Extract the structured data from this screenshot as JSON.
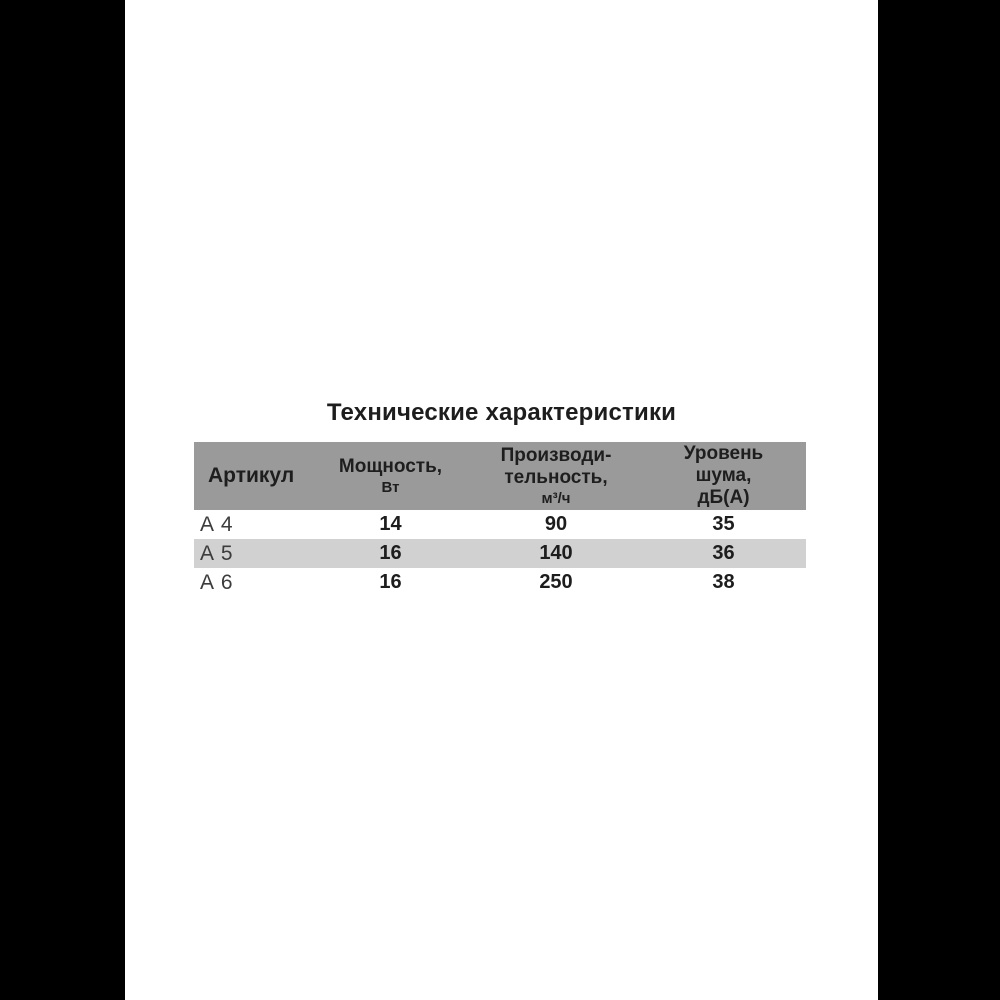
{
  "page": {
    "background_color": "#ffffff",
    "pillar_bar_color": "#000000"
  },
  "title": "Технические характеристики",
  "table": {
    "colors": {
      "header_bg": "#9a9a9a",
      "alt_row_bg": "#d1d1d1",
      "header_text": "#1e1e1e",
      "article_text": "#3c3c3c",
      "value_text": "#1d1d1d"
    },
    "header": {
      "article": "Артикул",
      "power_line1": "Мощность,",
      "power_line2": "Вт",
      "capacity_line1": "Производи-",
      "capacity_line2": "тельность,",
      "capacity_line3": "м³/ч",
      "noise_line1": "Уровень",
      "noise_line2": "шума,",
      "noise_line3": "дБ(А)"
    },
    "rows": [
      {
        "article": "А 4",
        "power": "14",
        "capacity": "90",
        "noise": "35"
      },
      {
        "article": "А 5",
        "power": "16",
        "capacity": "140",
        "noise": "36"
      },
      {
        "article": "А 6",
        "power": "16",
        "capacity": "250",
        "noise": "38"
      }
    ]
  }
}
